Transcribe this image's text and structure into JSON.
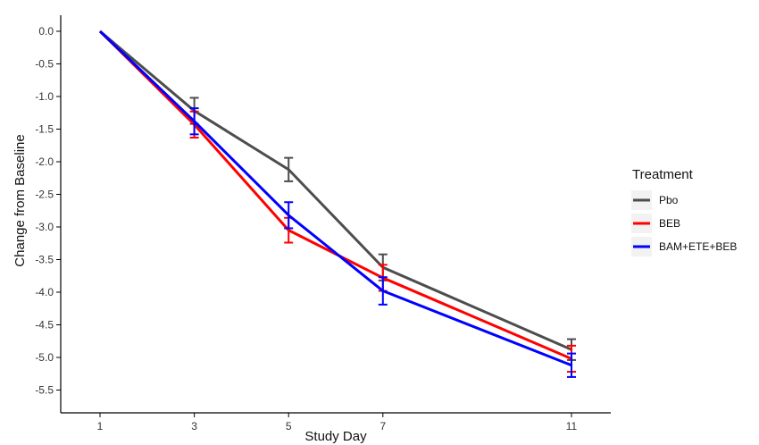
{
  "chart_data": {
    "type": "line",
    "title": "",
    "xlabel": "Study Day",
    "ylabel": "Change from Baseline",
    "x": [
      1,
      3,
      5,
      7,
      11
    ],
    "x_ticks": [
      "1",
      "3",
      "5",
      "7",
      "11"
    ],
    "xlim": [
      0,
      12
    ],
    "y_ticks": [
      "0.0",
      "-0.5",
      "-1.0",
      "-1.5",
      "-2.0",
      "-2.5",
      "-3.0",
      "-3.5",
      "-4.0",
      "-4.5",
      "-5.0",
      "-5.5"
    ],
    "ylim": [
      -5.8,
      0.25
    ],
    "grid": false,
    "legend": {
      "title": "Treatment",
      "position": "right"
    },
    "series": [
      {
        "name": "Pbo",
        "color": "#4d4d4d",
        "values": [
          0,
          -1.22,
          -2.12,
          -3.62,
          -4.88
        ],
        "err": [
          0,
          0.2,
          0.18,
          0.2,
          0.16
        ]
      },
      {
        "name": "BEB",
        "color": "#ff0000",
        "values": [
          0,
          -1.43,
          -3.05,
          -3.78,
          -5.02
        ],
        "err": [
          0,
          0.2,
          0.19,
          0.2,
          0.2
        ]
      },
      {
        "name": "BAM+ETE+BEB",
        "color": "#0000ff",
        "values": [
          0,
          -1.38,
          -2.82,
          -3.98,
          -5.12
        ],
        "err": [
          0,
          0.2,
          0.2,
          0.21,
          0.18
        ]
      }
    ]
  }
}
